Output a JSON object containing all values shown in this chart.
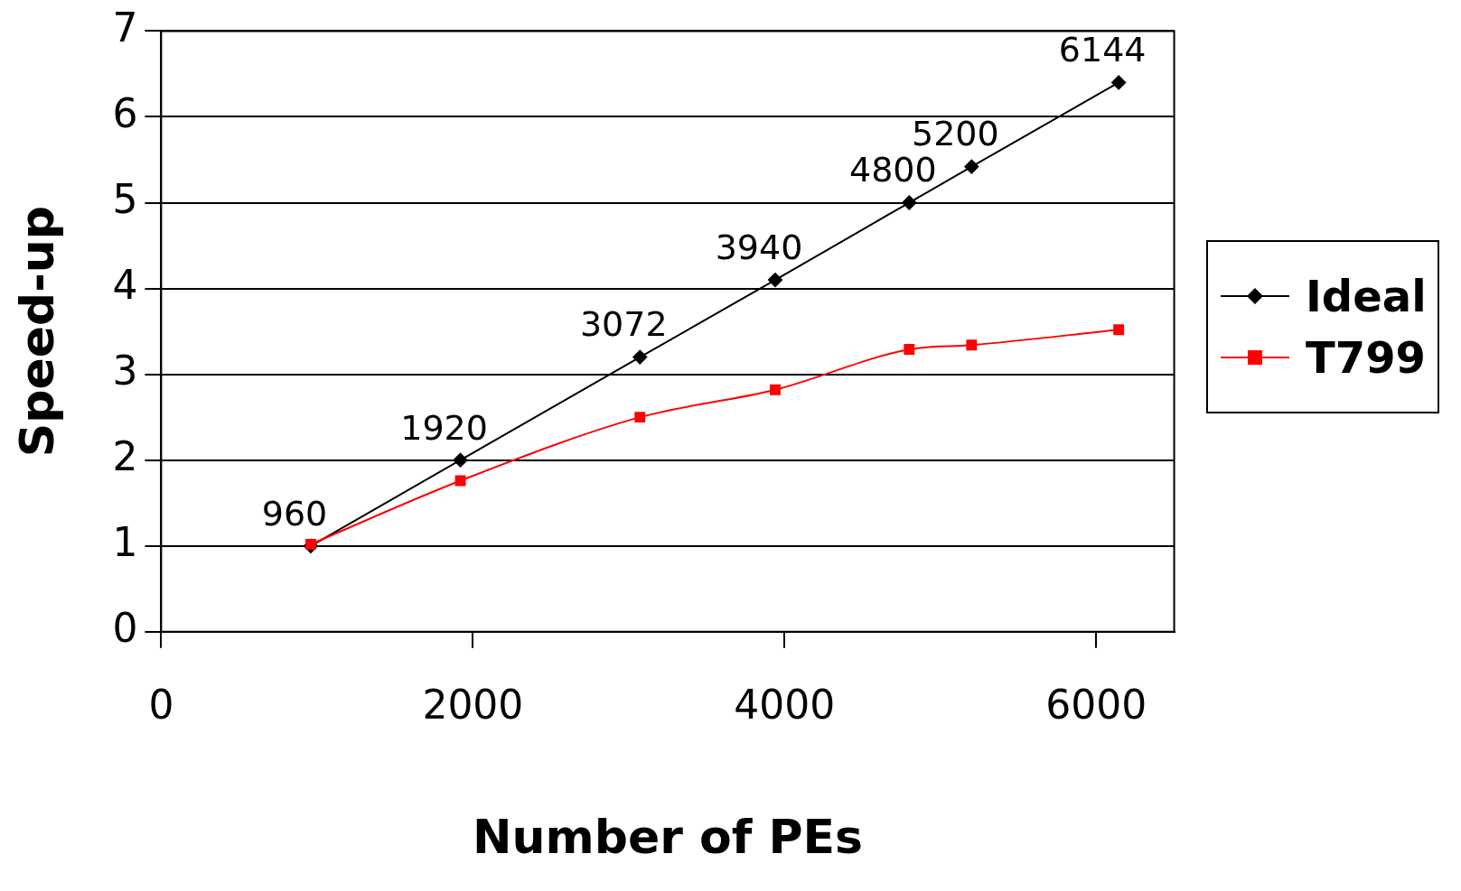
{
  "chart_data": {
    "type": "line",
    "xlabel": "Number of PEs",
    "ylabel": "Speed-up",
    "xlim": [
      0,
      6500
    ],
    "xticks": [
      0,
      2000,
      4000,
      6000
    ],
    "ylim": [
      0,
      7
    ],
    "yticks": [
      0,
      1,
      2,
      3,
      4,
      5,
      6,
      7
    ],
    "grid": "y",
    "legend": "right",
    "line_style": "solid",
    "series": [
      {
        "name": "Ideal",
        "color": "#000000",
        "marker": "diamond",
        "x": [
          960,
          1920,
          3072,
          3940,
          4800,
          5200,
          6144
        ],
        "values": [
          1,
          2,
          3.2,
          4.1,
          5,
          5.42,
          6.4
        ]
      },
      {
        "name": "T799",
        "color": "#ff0000",
        "marker": "square",
        "x": [
          960,
          1920,
          3072,
          3940,
          4800,
          5200,
          6144
        ],
        "values": [
          1.02,
          1.76,
          2.5,
          2.82,
          3.29,
          3.34,
          3.52
        ]
      }
    ],
    "annotations": [
      {
        "text": "960",
        "x": 960,
        "y": 1
      },
      {
        "text": "1920",
        "x": 1920,
        "y": 2
      },
      {
        "text": "3072",
        "x": 3072,
        "y": 3.2
      },
      {
        "text": "3940",
        "x": 3940,
        "y": 4.1
      },
      {
        "text": "4800",
        "x": 4800,
        "y": 5
      },
      {
        "text": "5200",
        "x": 5200,
        "y": 5.42
      },
      {
        "text": "6144",
        "x": 6144,
        "y": 6.4
      }
    ]
  }
}
